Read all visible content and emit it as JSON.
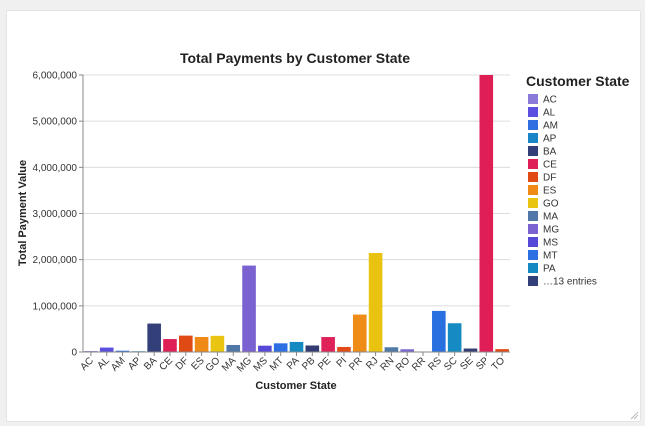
{
  "chart_data": {
    "type": "bar",
    "title": "Total Payments by Customer State",
    "xlabel": "Customer State",
    "ylabel": "Total Payment Value",
    "ylim": [
      0,
      6000000
    ],
    "y_ticks": [
      0,
      1000000,
      2000000,
      3000000,
      4000000,
      5000000,
      6000000
    ],
    "y_tick_labels": [
      "0",
      "1,000,000",
      "2,000,000",
      "3,000,000",
      "4,000,000",
      "5,000,000",
      "6,000,000"
    ],
    "grid": true,
    "legend_position": "right",
    "categories": [
      "AC",
      "AL",
      "AM",
      "AP",
      "BA",
      "CE",
      "DF",
      "ES",
      "GO",
      "MA",
      "MG",
      "MS",
      "MT",
      "PA",
      "PB",
      "PE",
      "PI",
      "PR",
      "RJ",
      "RN",
      "RO",
      "RR",
      "RS",
      "SC",
      "SE",
      "SP",
      "TO"
    ],
    "values": [
      20000,
      96000,
      28000,
      16000,
      616000,
      280000,
      355000,
      325000,
      350000,
      152000,
      1872000,
      137000,
      188000,
      218000,
      141000,
      324000,
      109000,
      811000,
      2144000,
      103000,
      60000,
      10000,
      890000,
      623000,
      75000,
      6000000,
      62000
    ],
    "colors": [
      "#8c7ad9",
      "#5b4fe0",
      "#2f6fe0",
      "#1a86c6",
      "#333f78",
      "#e01e56",
      "#e04a14",
      "#ef8a16",
      "#e9c411",
      "#4f78a8",
      "#7a63d1",
      "#5749d8",
      "#2b6fe2",
      "#158ac2",
      "#323c72",
      "#e0225a",
      "#e24a16",
      "#ef8c18",
      "#e9c30f",
      "#4f7ba6",
      "#7b6ad0",
      "#5a4bd8",
      "#2a6fe0",
      "#168bc3",
      "#333f72",
      "#e01e56",
      "#e04a14"
    ],
    "legend_title": "Customer State",
    "legend_items": [
      "AC",
      "AL",
      "AM",
      "AP",
      "BA",
      "CE",
      "DF",
      "ES",
      "GO",
      "MA",
      "MG",
      "MS",
      "MT",
      "PA",
      "…13 entries"
    ]
  }
}
